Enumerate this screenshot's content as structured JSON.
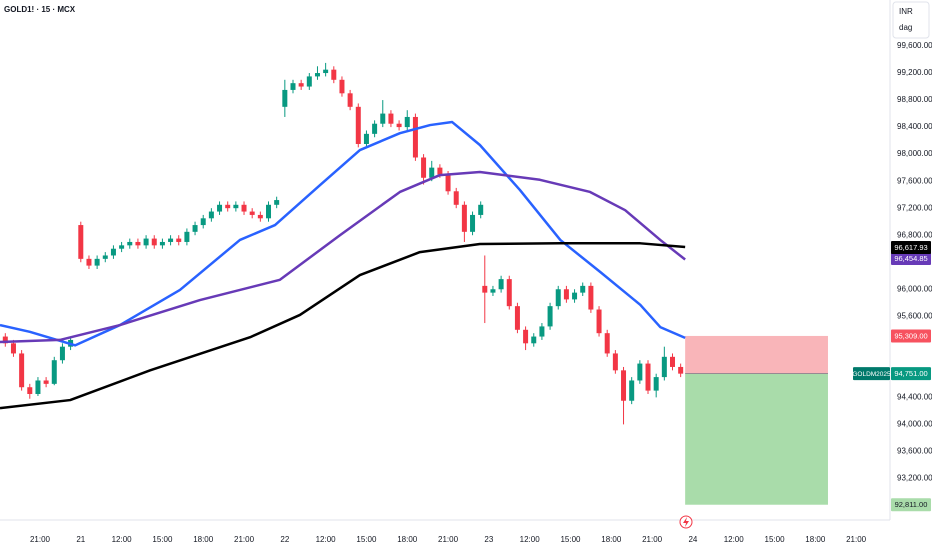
{
  "chart_data": {
    "type": "candlestick",
    "title": "GOLD1! · 15 · MCX",
    "currency": "INR",
    "unit_label": "dag",
    "up_color": "#089981",
    "down_color": "#f23645",
    "xlim": [
      -0.98,
      20.83
    ],
    "ylim": [
      92585,
      100281
    ],
    "xticks": [
      {
        "value": 0,
        "label": "21:00"
      },
      {
        "value": 1,
        "label": "21"
      },
      {
        "value": 2,
        "label": "12:00"
      },
      {
        "value": 3,
        "label": "15:00"
      },
      {
        "value": 4,
        "label": "18:00"
      },
      {
        "value": 5,
        "label": "21:00"
      },
      {
        "value": 6,
        "label": "22"
      },
      {
        "value": 7,
        "label": "12:00"
      },
      {
        "value": 8,
        "label": "15:00"
      },
      {
        "value": 9,
        "label": "18:00"
      },
      {
        "value": 10,
        "label": "21:00"
      },
      {
        "value": 11,
        "label": "23"
      },
      {
        "value": 12,
        "label": "12:00"
      },
      {
        "value": 13,
        "label": "15:00"
      },
      {
        "value": 14,
        "label": "18:00"
      },
      {
        "value": 15,
        "label": "21:00"
      },
      {
        "value": 16,
        "label": "24"
      },
      {
        "value": 17,
        "label": "12:00"
      },
      {
        "value": 18,
        "label": "15:00"
      },
      {
        "value": 19,
        "label": "18:00"
      },
      {
        "value": 20,
        "label": "21:00"
      }
    ],
    "yticks": [
      {
        "value": 99600,
        "label": "99,600.00"
      },
      {
        "value": 99200,
        "label": "99,200.00"
      },
      {
        "value": 98800,
        "label": "98,800.00"
      },
      {
        "value": 98400,
        "label": "98,400.00"
      },
      {
        "value": 98000,
        "label": "98,000.00"
      },
      {
        "value": 97600,
        "label": "97,600.00"
      },
      {
        "value": 97200,
        "label": "97,200.00"
      },
      {
        "value": 96800,
        "label": "96,800.00"
      },
      {
        "value": 96000,
        "label": "96,000.00"
      },
      {
        "value": 95600,
        "label": "95,600.00"
      },
      {
        "value": 94400,
        "label": "94,400.00"
      },
      {
        "value": 94000,
        "label": "94,000.00"
      },
      {
        "value": 93600,
        "label": "93,600.00"
      },
      {
        "value": 93200,
        "label": "93,200.00"
      }
    ],
    "x": [
      -0.85,
      -0.65,
      -0.45,
      -0.25,
      -0.05,
      0.15,
      0.35,
      0.55,
      0.75,
      1.0,
      1.2,
      1.4,
      1.6,
      1.8,
      2.0,
      2.2,
      2.4,
      2.6,
      2.8,
      3.0,
      3.2,
      3.4,
      3.6,
      3.8,
      4.0,
      4.2,
      4.4,
      4.6,
      4.8,
      5.0,
      5.2,
      5.4,
      5.6,
      5.8,
      6.0,
      6.2,
      6.4,
      6.6,
      6.8,
      7.0,
      7.2,
      7.4,
      7.6,
      7.8,
      8.0,
      8.2,
      8.4,
      8.6,
      8.8,
      9.0,
      9.2,
      9.4,
      9.6,
      9.8,
      10.0,
      10.2,
      10.4,
      10.6,
      10.8,
      10.9,
      11.1,
      11.3,
      11.5,
      11.7,
      11.9,
      12.1,
      12.3,
      12.5,
      12.7,
      12.9,
      13.1,
      13.3,
      13.5,
      13.7,
      13.9,
      14.1,
      14.3,
      14.5,
      14.7,
      14.9,
      15.1,
      15.3,
      15.5,
      15.7
    ],
    "open": [
      95300,
      95200,
      95050,
      94550,
      94450,
      94650,
      94600,
      94950,
      95150,
      96950,
      96450,
      96350,
      96450,
      96500,
      96600,
      96650,
      96700,
      96650,
      96750,
      96650,
      96700,
      96750,
      96700,
      96850,
      96950,
      97050,
      97150,
      97250,
      97200,
      97250,
      97150,
      97100,
      97050,
      97250,
      98700,
      98950,
      99050,
      99000,
      99150,
      99200,
      99250,
      99100,
      98900,
      98700,
      98150,
      98300,
      98450,
      98600,
      98450,
      98400,
      98550,
      97950,
      97650,
      97800,
      97700,
      97450,
      97250,
      96850,
      97100,
      96050,
      95950,
      96000,
      96150,
      95750,
      95400,
      95200,
      95300,
      95450,
      95750,
      96000,
      95850,
      95950,
      96050,
      95700,
      95350,
      95050,
      94800,
      94350,
      94650,
      94900,
      94500,
      94700,
      95000,
      94850
    ],
    "high": [
      95350,
      95250,
      95100,
      94600,
      94700,
      94700,
      95000,
      95200,
      95300,
      97000,
      96500,
      96500,
      96550,
      96650,
      96700,
      96750,
      96750,
      96800,
      96800,
      96750,
      96800,
      96800,
      96900,
      97000,
      97100,
      97200,
      97300,
      97300,
      97300,
      97300,
      97200,
      97150,
      97300,
      97370,
      99100,
      99100,
      99100,
      99200,
      99300,
      99350,
      99300,
      99150,
      98950,
      98750,
      98350,
      98500,
      98800,
      98650,
      98500,
      98650,
      98600,
      98000,
      97900,
      97850,
      97750,
      97500,
      97300,
      97150,
      97300,
      96500,
      96050,
      96200,
      96200,
      95800,
      95450,
      95350,
      95500,
      95800,
      96050,
      96050,
      96000,
      96100,
      96100,
      95750,
      95400,
      95100,
      94850,
      94700,
      94950,
      94950,
      94750,
      95150,
      95050,
      94900
    ],
    "low": [
      95150,
      95000,
      94500,
      94380,
      94420,
      94550,
      94580,
      94900,
      95100,
      96400,
      96300,
      96300,
      96400,
      96450,
      96550,
      96600,
      96600,
      96600,
      96600,
      96600,
      96650,
      96650,
      96650,
      96800,
      96900,
      97000,
      97100,
      97150,
      97150,
      97100,
      97050,
      97000,
      97000,
      97200,
      98550,
      98900,
      98950,
      98950,
      99100,
      99150,
      99050,
      98850,
      98650,
      98100,
      98100,
      98250,
      98400,
      98400,
      98350,
      98350,
      97900,
      97550,
      97600,
      97650,
      97400,
      97200,
      96700,
      96800,
      97050,
      95500,
      95900,
      95950,
      95700,
      95350,
      95100,
      95150,
      95250,
      95400,
      95700,
      95800,
      95800,
      95900,
      95650,
      95300,
      95000,
      94750,
      94000,
      94300,
      94600,
      94450,
      94400,
      94650,
      94800,
      94700
    ],
    "close": [
      95200,
      95050,
      94550,
      94450,
      94650,
      94600,
      94950,
      95150,
      95250,
      96450,
      96350,
      96450,
      96500,
      96600,
      96650,
      96700,
      96650,
      96750,
      96650,
      96700,
      96750,
      96700,
      96850,
      96950,
      97050,
      97150,
      97250,
      97200,
      97250,
      97150,
      97100,
      97050,
      97250,
      97320,
      98950,
      99050,
      99000,
      99150,
      99200,
      99250,
      99100,
      98900,
      98700,
      98150,
      98300,
      98450,
      98600,
      98450,
      98400,
      98550,
      97950,
      97650,
      97800,
      97700,
      97450,
      97250,
      96850,
      97100,
      97250,
      95950,
      96000,
      96150,
      95750,
      95400,
      95200,
      95300,
      95450,
      95750,
      96000,
      95850,
      95950,
      96050,
      95700,
      95350,
      95050,
      94800,
      94350,
      94650,
      94900,
      94500,
      94700,
      95000,
      94850,
      94751
    ],
    "series": [
      {
        "color": "#2962ff",
        "x": [
          -0.98,
          -0.25,
          0.86,
          1.96,
          3.43,
          4.9,
          5.76,
          6.86,
          7.84,
          8.82,
          9.56,
          10.1,
          10.78,
          11.76,
          12.75,
          13.73,
          14.71,
          15.2,
          15.81
        ],
        "values": [
          95470,
          95370,
          95170,
          95470,
          95990,
          96730,
          96950,
          97540,
          98060,
          98310,
          98430,
          98475,
          98135,
          97470,
          96730,
          96255,
          95770,
          95440,
          95280
        ]
      },
      {
        "color": "#673ab7",
        "x": [
          -0.98,
          0.49,
          1.96,
          3.92,
          5.88,
          7.35,
          8.82,
          9.8,
          10.78,
          12.25,
          13.48,
          14.34,
          15.2,
          15.81
        ],
        "values": [
          95220,
          95250,
          95470,
          95840,
          96140,
          96800,
          97440,
          97690,
          97735,
          97620,
          97440,
          97170,
          96730,
          96440
        ],
        "last_value": 96454.85,
        "last_label": "96,454.85"
      },
      {
        "color": "#000000",
        "x": [
          -0.98,
          0.74,
          2.7,
          5.15,
          6.37,
          7.84,
          9.31,
          10.78,
          12.75,
          14.71,
          15.81
        ],
        "values": [
          94240,
          94360,
          94800,
          95290,
          95620,
          96210,
          96550,
          96670,
          96680,
          96680,
          96625
        ],
        "last_value": 96617.93,
        "last_label": "96,617.93"
      }
    ],
    "position": {
      "x": [
        15.81,
        19.31
      ],
      "stop": 95309,
      "entry": 94751,
      "target": 92811,
      "value_labels": {
        "stop": "95,309.00",
        "entry": "94,751.00",
        "target": "92,811.00"
      },
      "symbol": "GOLDM2025",
      "stop_color": "#f9b5b9",
      "target_color": "#a9dcaa"
    }
  }
}
